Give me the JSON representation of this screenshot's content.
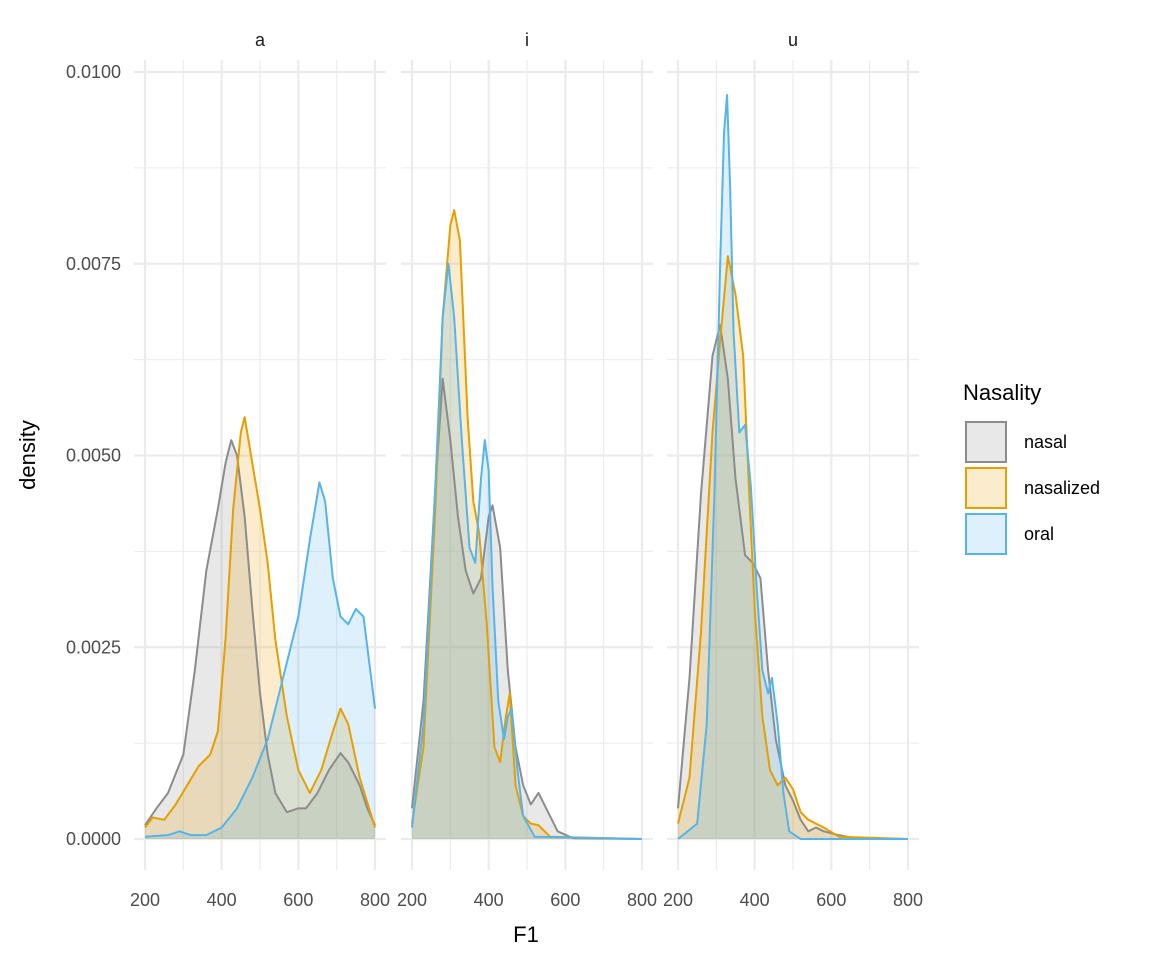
{
  "chart_data": {
    "type": "area",
    "xlabel": "F1",
    "ylabel": "density",
    "xlim": [
      200,
      800
    ],
    "ylim": [
      0,
      0.01
    ],
    "x_ticks": [
      "200",
      "400",
      "600",
      "800"
    ],
    "y_ticks": [
      "0.0000",
      "0.0025",
      "0.0050",
      "0.0075",
      "0.0100"
    ],
    "grid": true,
    "legend_position": "right",
    "legend": {
      "title": "Nasality",
      "entries": [
        "nasal",
        "nasalized",
        "oral"
      ]
    },
    "colors": {
      "nasal": "#8c8c8c",
      "nasalized": "#e69f00",
      "oral": "#56b4e9",
      "grid": "#ebebeb"
    },
    "facets": [
      {
        "label": "a",
        "series": [
          {
            "name": "nasal",
            "points": [
              [
                200,
                0.00018
              ],
              [
                230,
                0.0004
              ],
              [
                260,
                0.0006
              ],
              [
                300,
                0.0011
              ],
              [
                330,
                0.0022
              ],
              [
                360,
                0.0035
              ],
              [
                390,
                0.0043
              ],
              [
                410,
                0.0049
              ],
              [
                425,
                0.0052
              ],
              [
                440,
                0.005
              ],
              [
                460,
                0.0042
              ],
              [
                480,
                0.003
              ],
              [
                500,
                0.0019
              ],
              [
                520,
                0.0011
              ],
              [
                540,
                0.0006
              ],
              [
                570,
                0.00035
              ],
              [
                600,
                0.0004
              ],
              [
                620,
                0.0004
              ],
              [
                650,
                0.0006
              ],
              [
                680,
                0.0009
              ],
              [
                710,
                0.00112
              ],
              [
                730,
                0.001
              ],
              [
                760,
                0.0007
              ],
              [
                780,
                0.0004
              ],
              [
                800,
                0.00018
              ]
            ]
          },
          {
            "name": "nasalized",
            "points": [
              [
                200,
                0.00015
              ],
              [
                220,
                0.00028
              ],
              [
                250,
                0.00025
              ],
              [
                280,
                0.00045
              ],
              [
                310,
                0.0007
              ],
              [
                340,
                0.00095
              ],
              [
                370,
                0.0011
              ],
              [
                390,
                0.0014
              ],
              [
                410,
                0.0026
              ],
              [
                430,
                0.0043
              ],
              [
                450,
                0.0053
              ],
              [
                460,
                0.0055
              ],
              [
                480,
                0.0049
              ],
              [
                500,
                0.0043
              ],
              [
                520,
                0.0036
              ],
              [
                540,
                0.0026
              ],
              [
                570,
                0.0016
              ],
              [
                600,
                0.0009
              ],
              [
                630,
                0.0006
              ],
              [
                660,
                0.0009
              ],
              [
                690,
                0.0014
              ],
              [
                710,
                0.0017
              ],
              [
                730,
                0.0015
              ],
              [
                760,
                0.0008
              ],
              [
                800,
                0.00015
              ]
            ]
          },
          {
            "name": "oral",
            "points": [
              [
                200,
                3e-05
              ],
              [
                260,
                5e-05
              ],
              [
                290,
                0.0001
              ],
              [
                320,
                5e-05
              ],
              [
                360,
                5e-05
              ],
              [
                400,
                0.00015
              ],
              [
                440,
                0.0004
              ],
              [
                480,
                0.0008
              ],
              [
                520,
                0.0013
              ],
              [
                560,
                0.0021
              ],
              [
                600,
                0.0029
              ],
              [
                630,
                0.0039
              ],
              [
                655,
                0.00465
              ],
              [
                670,
                0.0044
              ],
              [
                690,
                0.0034
              ],
              [
                710,
                0.0029
              ],
              [
                730,
                0.0028
              ],
              [
                750,
                0.003
              ],
              [
                770,
                0.0029
              ],
              [
                800,
                0.0017
              ]
            ]
          }
        ]
      },
      {
        "label": "i",
        "series": [
          {
            "name": "nasal",
            "points": [
              [
                200,
                0.0004
              ],
              [
                230,
                0.0018
              ],
              [
                260,
                0.0045
              ],
              [
                280,
                0.006
              ],
              [
                300,
                0.0052
              ],
              [
                320,
                0.0042
              ],
              [
                340,
                0.0035
              ],
              [
                360,
                0.0032
              ],
              [
                380,
                0.0034
              ],
              [
                400,
                0.0042
              ],
              [
                410,
                0.00435
              ],
              [
                430,
                0.0038
              ],
              [
                450,
                0.0022
              ],
              [
                470,
                0.0012
              ],
              [
                490,
                0.0007
              ],
              [
                510,
                0.00045
              ],
              [
                530,
                0.0006
              ],
              [
                550,
                0.0004
              ],
              [
                580,
                0.0001
              ],
              [
                620,
                1e-05
              ],
              [
                800,
                0.0
              ]
            ]
          },
          {
            "name": "nasalized",
            "points": [
              [
                200,
                0.0002
              ],
              [
                230,
                0.0012
              ],
              [
                260,
                0.0042
              ],
              [
                280,
                0.0068
              ],
              [
                300,
                0.008
              ],
              [
                310,
                0.0082
              ],
              [
                325,
                0.0078
              ],
              [
                345,
                0.0055
              ],
              [
                360,
                0.0044
              ],
              [
                375,
                0.004
              ],
              [
                395,
                0.0028
              ],
              [
                415,
                0.0012
              ],
              [
                430,
                0.001
              ],
              [
                445,
                0.0016
              ],
              [
                455,
                0.0019
              ],
              [
                470,
                0.0007
              ],
              [
                490,
                0.0003
              ],
              [
                510,
                0.0002
              ],
              [
                530,
                0.00018
              ],
              [
                560,
                3e-05
              ],
              [
                800,
                0.0
              ]
            ]
          },
          {
            "name": "oral",
            "points": [
              [
                200,
                0.00015
              ],
              [
                230,
                0.0015
              ],
              [
                260,
                0.0045
              ],
              [
                280,
                0.0068
              ],
              [
                295,
                0.0075
              ],
              [
                310,
                0.0068
              ],
              [
                330,
                0.0052
              ],
              [
                350,
                0.0038
              ],
              [
                365,
                0.0036
              ],
              [
                380,
                0.0047
              ],
              [
                390,
                0.0052
              ],
              [
                400,
                0.0048
              ],
              [
                410,
                0.0033
              ],
              [
                425,
                0.0018
              ],
              [
                440,
                0.0013
              ],
              [
                450,
                0.0016
              ],
              [
                460,
                0.0017
              ],
              [
                475,
                0.0009
              ],
              [
                490,
                0.0003
              ],
              [
                520,
                3e-05
              ],
              [
                800,
                0.0
              ]
            ]
          }
        ]
      },
      {
        "label": "u",
        "series": [
          {
            "name": "nasal",
            "points": [
              [
                200,
                0.0004
              ],
              [
                230,
                0.0021
              ],
              [
                260,
                0.0045
              ],
              [
                290,
                0.0063
              ],
              [
                310,
                0.0067
              ],
              [
                330,
                0.006
              ],
              [
                350,
                0.0047
              ],
              [
                375,
                0.0037
              ],
              [
                395,
                0.0036
              ],
              [
                415,
                0.0034
              ],
              [
                435,
                0.0022
              ],
              [
                455,
                0.0013
              ],
              [
                480,
                0.0007
              ],
              [
                500,
                0.0005
              ],
              [
                520,
                0.00025
              ],
              [
                540,
                0.0001
              ],
              [
                560,
                0.00015
              ],
              [
                580,
                0.0001
              ],
              [
                620,
                5e-05
              ],
              [
                660,
                1e-05
              ],
              [
                800,
                0.0
              ]
            ]
          },
          {
            "name": "nasalized",
            "points": [
              [
                200,
                0.0002
              ],
              [
                230,
                0.0008
              ],
              [
                260,
                0.0027
              ],
              [
                290,
                0.0053
              ],
              [
                310,
                0.0065
              ],
              [
                330,
                0.0076
              ],
              [
                350,
                0.0071
              ],
              [
                370,
                0.0063
              ],
              [
                385,
                0.0046
              ],
              [
                400,
                0.003
              ],
              [
                420,
                0.0016
              ],
              [
                440,
                0.0009
              ],
              [
                460,
                0.0007
              ],
              [
                480,
                0.0008
              ],
              [
                500,
                0.00065
              ],
              [
                520,
                0.00035
              ],
              [
                540,
                0.00025
              ],
              [
                560,
                0.0002
              ],
              [
                580,
                0.00015
              ],
              [
                620,
                3e-05
              ],
              [
                800,
                0.0
              ]
            ]
          },
          {
            "name": "oral",
            "points": [
              [
                200,
                0.0
              ],
              [
                250,
                0.0002
              ],
              [
                275,
                0.0015
              ],
              [
                295,
                0.0045
              ],
              [
                310,
                0.0075
              ],
              [
                320,
                0.0092
              ],
              [
                328,
                0.0097
              ],
              [
                336,
                0.0085
              ],
              [
                345,
                0.0066
              ],
              [
                360,
                0.0053
              ],
              [
                375,
                0.0054
              ],
              [
                390,
                0.0046
              ],
              [
                405,
                0.0033
              ],
              [
                420,
                0.0022
              ],
              [
                435,
                0.0019
              ],
              [
                445,
                0.0021
              ],
              [
                460,
                0.0015
              ],
              [
                475,
                0.0006
              ],
              [
                490,
                0.0001
              ],
              [
                520,
                0.0
              ],
              [
                800,
                0.0
              ]
            ]
          }
        ]
      }
    ]
  }
}
